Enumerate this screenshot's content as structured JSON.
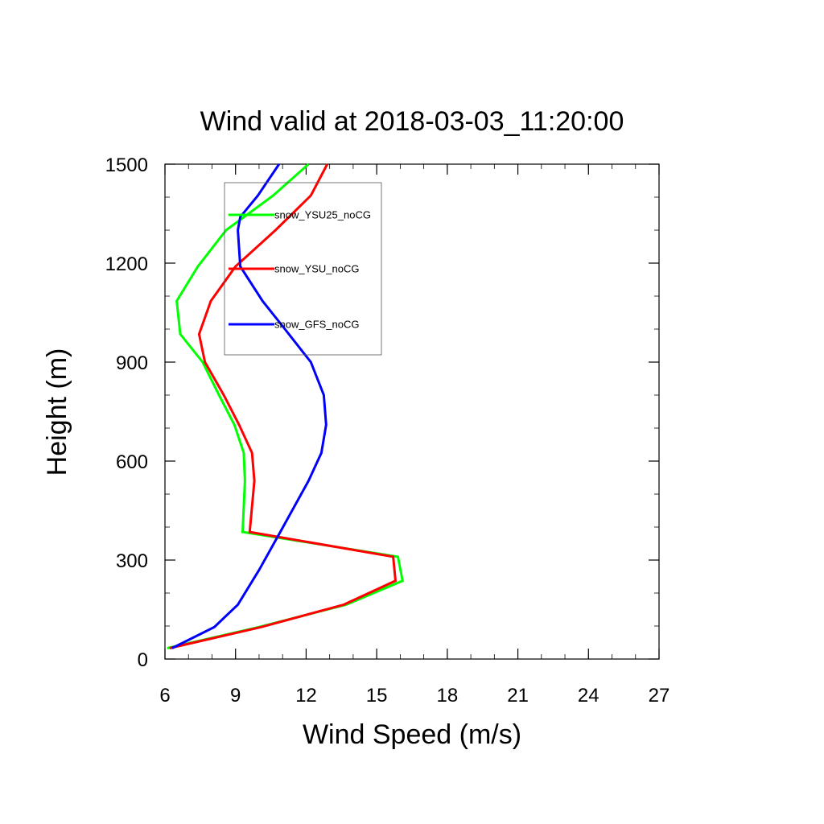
{
  "chart_data": {
    "type": "line",
    "title": "Wind valid at 2018-03-03_11:20:00",
    "xlabel": "Wind Speed (m/s)",
    "ylabel": "Height (m)",
    "xlim": [
      6,
      27
    ],
    "ylim": [
      0,
      1500
    ],
    "xticks": [
      6,
      9,
      12,
      15,
      18,
      21,
      24,
      27
    ],
    "yticks": [
      0,
      300,
      600,
      900,
      1200,
      1500
    ],
    "xtick_labels": [
      "6",
      "9",
      "12",
      "15",
      "18",
      "21",
      "24",
      "27"
    ],
    "ytick_labels": [
      "0",
      "300",
      "600",
      "900",
      "1200",
      "1500"
    ],
    "grid": false,
    "legend_position": "upper-left, inside plot, boxed",
    "series": [
      {
        "name": "snow_YSU25_noCG",
        "color": "#00ff00",
        "x": [
          6.1,
          10.0,
          13.7,
          16.1,
          15.9,
          9.3,
          9.4,
          9.35,
          8.95,
          8.3,
          7.6,
          6.65,
          6.5,
          7.4,
          8.6,
          10.6,
          12.1
        ],
        "y": [
          33,
          97,
          165,
          237,
          310,
          385,
          540,
          625,
          710,
          800,
          900,
          985,
          1085,
          1190,
          1300,
          1405,
          1500
        ]
      },
      {
        "name": "snow_YSU_noCG",
        "color": "#ff0000",
        "x": [
          6.2,
          10.1,
          13.6,
          15.8,
          15.7,
          9.6,
          9.8,
          9.7,
          9.15,
          8.5,
          7.7,
          7.45,
          7.95,
          9.0,
          10.7,
          12.2,
          12.9
        ],
        "y": [
          33,
          97,
          165,
          237,
          310,
          385,
          540,
          625,
          710,
          800,
          900,
          985,
          1085,
          1190,
          1300,
          1405,
          1500
        ]
      },
      {
        "name": "snow_GFS_noCG",
        "color": "#0000ff",
        "x": [
          6.3,
          8.1,
          9.1,
          10.0,
          10.9,
          12.1,
          12.65,
          12.85,
          12.75,
          12.2,
          11.1,
          10.15,
          9.2,
          9.1,
          9.2,
          9.95,
          10.85
        ],
        "y": [
          33,
          97,
          165,
          270,
          385,
          540,
          625,
          710,
          800,
          900,
          1000,
          1085,
          1190,
          1300,
          1340,
          1405,
          1500
        ]
      }
    ]
  }
}
